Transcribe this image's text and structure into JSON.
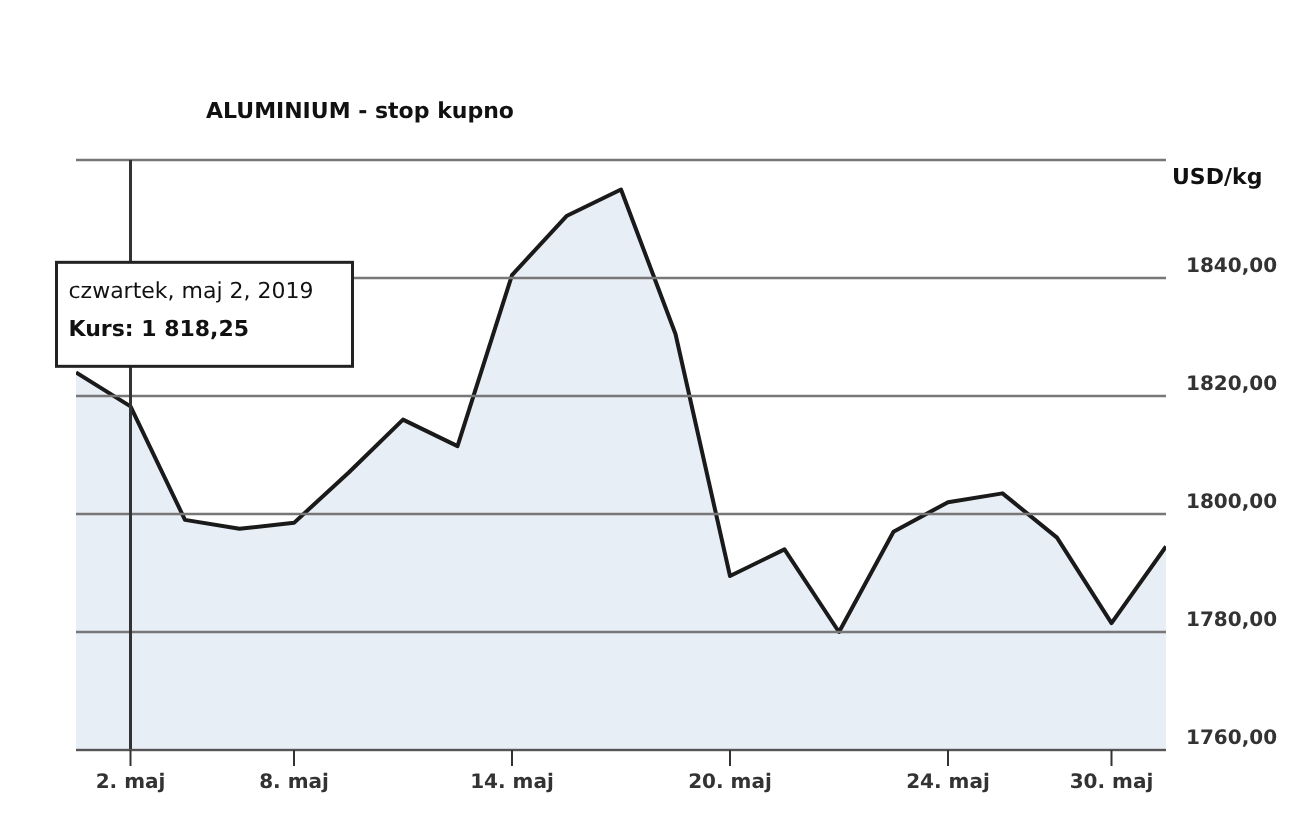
{
  "chart_data": {
    "type": "area",
    "title": "ALUMINIUM - stop kupno",
    "ylabel": "USD/kg",
    "categories": [
      null,
      "2. maj",
      null,
      null,
      "8. maj",
      null,
      null,
      null,
      "14. maj",
      null,
      null,
      null,
      "20. maj",
      null,
      null,
      null,
      "24. maj",
      null,
      null,
      "30. maj",
      null
    ],
    "series": [
      {
        "color": "#1a1a1a",
        "values": [
          1824,
          1818.25,
          1799,
          1797.5,
          1798.5,
          1807,
          1816,
          1811.5,
          1840.5,
          1850.5,
          1855,
          1830.5,
          1789.5,
          1794,
          1780,
          1797,
          1802,
          1803.5,
          1796,
          1781.5,
          1794.5
        ]
      }
    ],
    "ylim": [
      1760,
      1860
    ],
    "yticks": [
      {
        "value": 1760,
        "label": "1760,00"
      },
      {
        "value": 1780,
        "label": "1780,00"
      },
      {
        "value": 1800,
        "label": "1800,00"
      },
      {
        "value": 1820,
        "label": "1820,00"
      },
      {
        "value": 1840,
        "label": "1840,00"
      },
      {
        "value": 1860,
        "label": null
      }
    ],
    "grid": "y",
    "legend": false,
    "ref_lines": [
      {
        "axis": "x",
        "value": "2. maj",
        "color": "#333333"
      }
    ],
    "annotations": [
      "czwartek, maj 2, 2019",
      {
        "text": "Kurs: 1 818,25",
        "x": "2. maj",
        "y": 1818.25
      }
    ]
  }
}
